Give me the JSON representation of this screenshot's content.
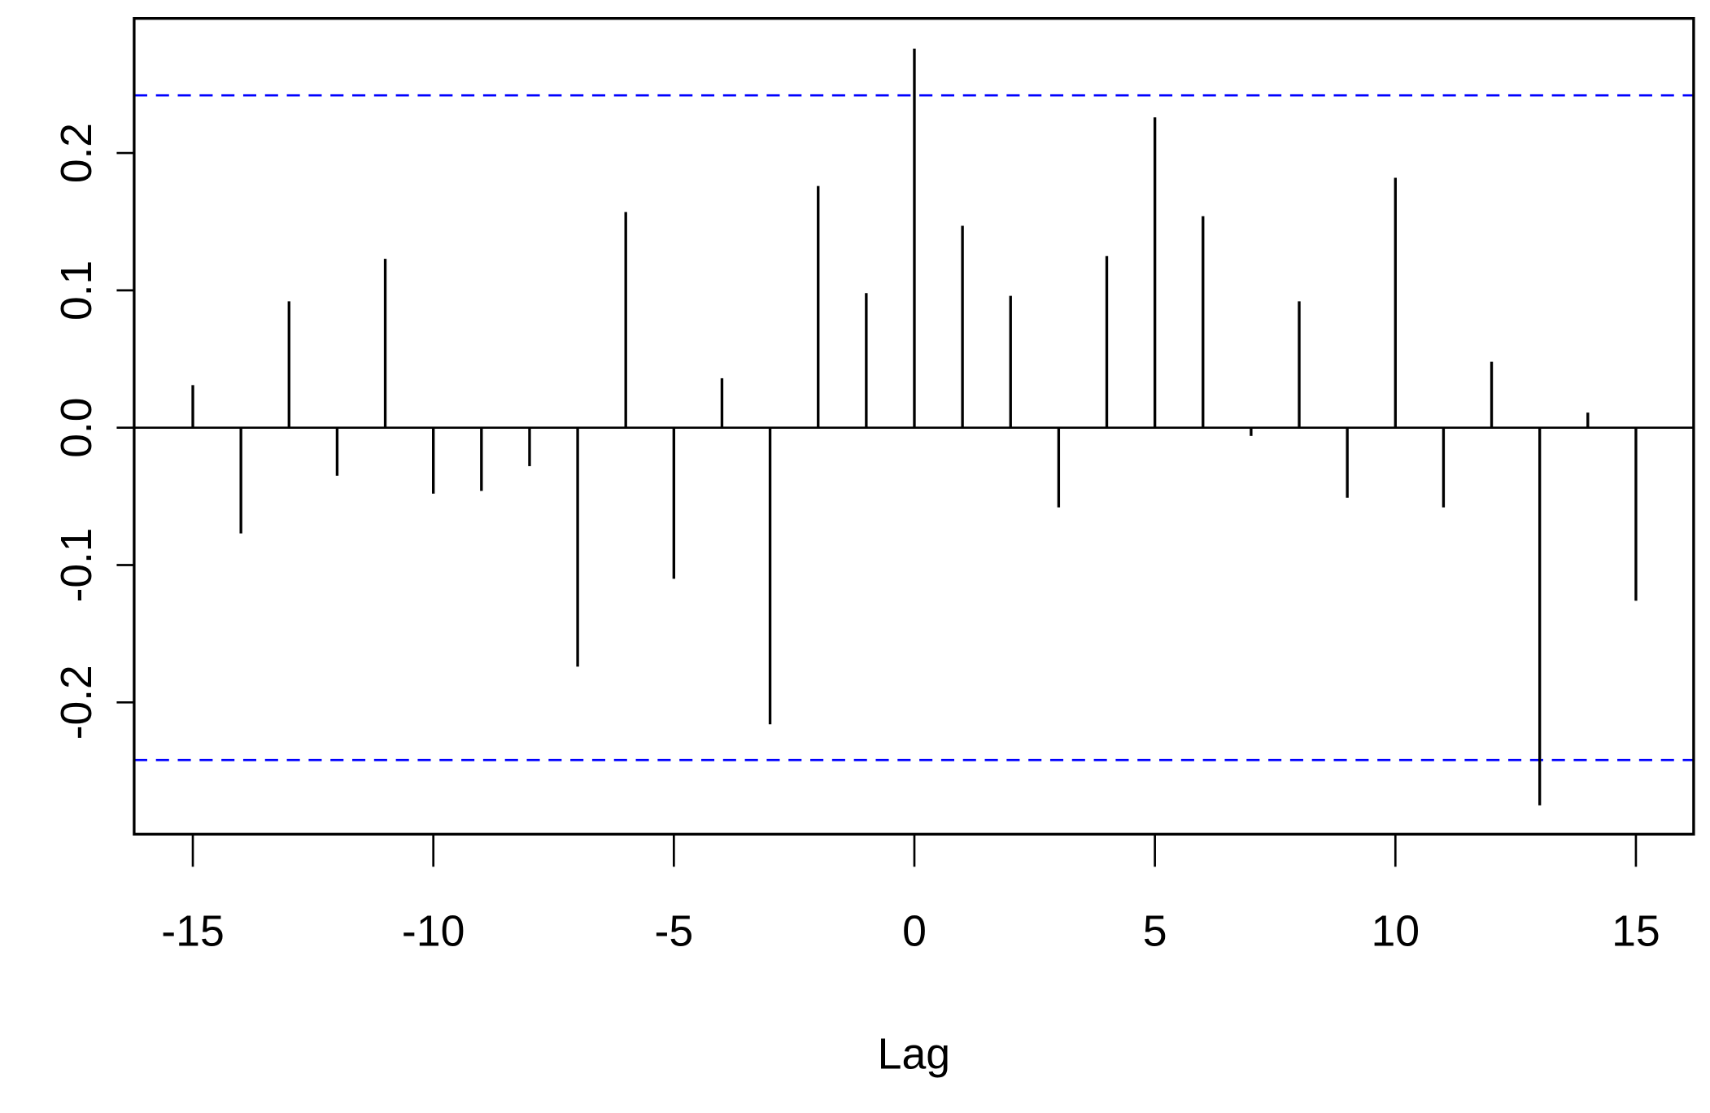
{
  "chart_data": {
    "type": "stem",
    "x_label": "Lag",
    "x": [
      -15,
      -14,
      -13,
      -12,
      -11,
      -10,
      -9,
      -8,
      -7,
      -6,
      -5,
      -4,
      -3,
      -2,
      -1,
      0,
      1,
      2,
      3,
      4,
      5,
      6,
      7,
      8,
      9,
      10,
      11,
      12,
      13,
      14,
      15
    ],
    "values": [
      0.031,
      -0.077,
      0.092,
      -0.035,
      0.123,
      -0.048,
      -0.046,
      -0.028,
      -0.174,
      0.157,
      -0.11,
      0.036,
      -0.216,
      0.176,
      0.098,
      0.276,
      0.147,
      0.096,
      -0.058,
      0.125,
      0.226,
      0.154,
      -0.006,
      0.092,
      -0.051,
      0.182,
      -0.058,
      0.048,
      -0.275,
      0.011,
      -0.126
    ],
    "color": "#000000",
    "conf_limits": [
      0.242,
      -0.242
    ],
    "conf_color": "#0000ff",
    "xlim": [
      -16.22,
      16.2
    ],
    "xticks": [
      -15,
      -10,
      -5,
      0,
      5,
      10,
      15
    ],
    "ylim": [
      -0.296,
      0.298
    ],
    "yticks": [
      -0.2,
      -0.1,
      {
        "value": 0,
        "label": "0.0"
      },
      0.1,
      0.2
    ]
  }
}
